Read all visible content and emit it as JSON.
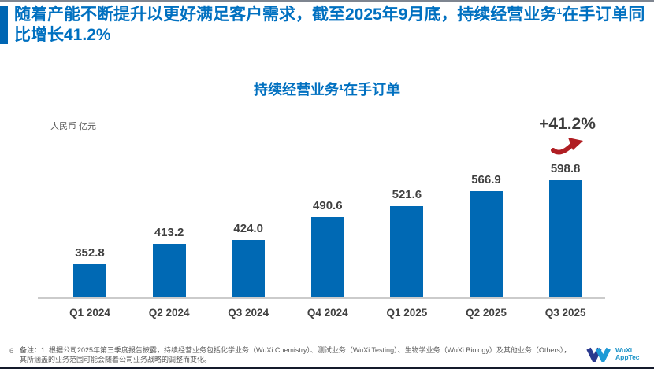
{
  "header": {
    "title": "随着产能不断提升以更好满足客户需求，截至2025年9月底，持续经营业务¹在手订单同比增长41.2%"
  },
  "chart_data": {
    "type": "bar",
    "title": "持续经营业务¹在手订单",
    "unit": "人民币 亿元",
    "categories": [
      "Q1 2024",
      "Q2 2024",
      "Q3 2024",
      "Q4 2024",
      "Q1 2025",
      "Q2 2025",
      "Q3 2025"
    ],
    "values": [
      352.8,
      413.2,
      424.0,
      490.6,
      521.6,
      566.9,
      598.8
    ],
    "annotation": "+41.2%",
    "annotation_color": "#3d3d3d",
    "arrow_color": "#b01e23",
    "bar_color": "#0069b4",
    "value_label_color": "#404040",
    "xlabel": "",
    "ylabel": "人民币 亿元",
    "grid": false,
    "legend": false,
    "baseline_truncated": true,
    "axis_line_color": "#cbcbcb"
  },
  "footer": {
    "page_number": "6",
    "note_line1": "备注：1. 根据公司2025年第三季度报告披露，持续经营业务包括化学业务（WuXi Chemistry）、测试业务（WuXi Testing）、生物学业务（WuXi Biology）及其他业务（Others），",
    "note_line2": "其所涵盖的业务范围可能会随着公司业务战略的调整而变化。",
    "logo_line1": "WuXi",
    "logo_line2": "AppTec"
  }
}
